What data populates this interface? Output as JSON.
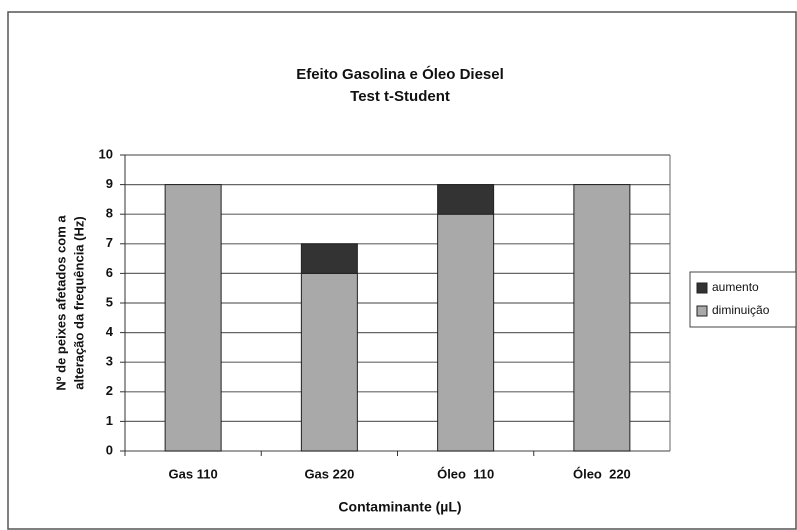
{
  "chart_data": {
    "type": "bar",
    "stacked": true,
    "title": "Efeito Gasolina e Óleo Diesel",
    "subtitle": "Test t-Student",
    "ylabel": [
      "Nº de peixes afetados com a",
      "alteração da frequência (Hz)"
    ],
    "xlabel": "Contaminante (µL)",
    "categories": [
      "Gas 110",
      "Gas 220",
      "Óleo  110",
      "Óleo  220"
    ],
    "series": [
      {
        "name": "diminuição",
        "color": "#a9a9a9",
        "values": [
          9,
          6,
          8,
          9
        ]
      },
      {
        "name": "aumento",
        "color": "#333333",
        "values": [
          0,
          1,
          1,
          0
        ]
      }
    ],
    "ylim": [
      0,
      10
    ],
    "yticks": [
      0,
      1,
      2,
      3,
      4,
      5,
      6,
      7,
      8,
      9,
      10
    ],
    "grid": true,
    "legend": "right"
  }
}
